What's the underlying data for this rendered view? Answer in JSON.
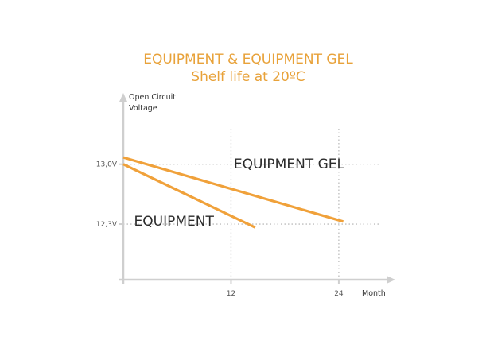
{
  "chart_data": {
    "type": "line",
    "title": "EQUIPMENT & EQUIPMENT GEL",
    "subtitle": "Shelf life at 20ºC",
    "xlabel": "Month",
    "ylabel": "Open Circuit Voltage",
    "ylabel_lines": [
      "Open Circuit",
      "Voltage"
    ],
    "x_ticks": [
      {
        "value": 12,
        "label": "12"
      },
      {
        "value": 24,
        "label": "24"
      }
    ],
    "y_ticks": [
      {
        "value": 13.0,
        "label": "13,0V"
      },
      {
        "value": 12.3,
        "label": "12,3V"
      }
    ],
    "xlim": [
      0,
      29.5
    ],
    "ylim": [
      11.65,
      13.75
    ],
    "grid": "dotted at ticks",
    "legend": "inline labels",
    "series": [
      {
        "name": "EQUIPMENT GEL",
        "color": "#f0a13a",
        "x": [
          0,
          24.5
        ],
        "y": [
          13.08,
          12.33
        ]
      },
      {
        "name": "EQUIPMENT",
        "color": "#f0a13a",
        "x": [
          0,
          14.7
        ],
        "y": [
          13.0,
          12.26
        ]
      }
    ],
    "annotations": [
      {
        "text": "EQUIPMENT GEL",
        "x": 12.3,
        "y": 12.95
      },
      {
        "text": "EQUIPMENT",
        "x": 1.2,
        "y": 12.28
      }
    ],
    "colors": {
      "accent": "#f0a13a",
      "title": "#e8a23a",
      "axis": "#cfcfcf",
      "grid": "#bdbdbd"
    }
  }
}
